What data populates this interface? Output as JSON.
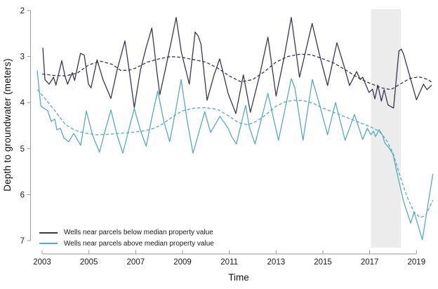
{
  "figure": {
    "kind": "time-series line chart",
    "background": "#ffffff",
    "axis_color": "#999999",
    "text_color": "#1a1a1a"
  },
  "chart_data": {
    "type": "line",
    "title": "",
    "xlabel": "Time",
    "ylabel": "Depth to groundwater (meters)",
    "x_ticks": [
      2003,
      2005,
      2007,
      2009,
      2011,
      2013,
      2015,
      2017,
      2019
    ],
    "y_ticks": [
      2,
      3,
      4,
      5,
      6,
      7
    ],
    "x_range": [
      2003,
      2019
    ],
    "y_range": [
      2,
      7
    ],
    "y_axis_inverted": true,
    "grid": false,
    "legend_position": "bottom-left-inside",
    "shaded_region": {
      "x_start": 2017.05,
      "x_end": 2018.33,
      "color": "#ececec"
    },
    "legend": [
      {
        "label": "Wells near parcels below median property value",
        "color": "#3d3453",
        "style": "solid"
      },
      {
        "label": "Wells near parcels above median property value",
        "color": "#58abbc",
        "style": "solid"
      }
    ],
    "series": [
      {
        "name": "Wells near parcels below median property value",
        "color": "#3d3453",
        "style": "solid",
        "width": 1.3,
        "points": [
          [
            2003.03,
            2.81
          ],
          [
            2003.12,
            3.5
          ],
          [
            2003.3,
            3.6
          ],
          [
            2003.49,
            3.45
          ],
          [
            2003.59,
            3.62
          ],
          [
            2003.84,
            3.09
          ],
          [
            2003.99,
            3.45
          ],
          [
            2004.09,
            3.6
          ],
          [
            2004.29,
            3.35
          ],
          [
            2004.39,
            3.52
          ],
          [
            2004.64,
            2.93
          ],
          [
            2004.8,
            2.97
          ],
          [
            2004.98,
            3.6
          ],
          [
            2005.09,
            3.68
          ],
          [
            2005.35,
            3.07
          ],
          [
            2005.6,
            3.5
          ],
          [
            2005.94,
            3.91
          ],
          [
            2006.2,
            3.3
          ],
          [
            2006.54,
            2.66
          ],
          [
            2006.75,
            3.4
          ],
          [
            2006.94,
            4.11
          ],
          [
            2007.2,
            3.3
          ],
          [
            2007.45,
            2.8
          ],
          [
            2007.69,
            2.38
          ],
          [
            2007.9,
            3.3
          ],
          [
            2008.03,
            3.83
          ],
          [
            2008.3,
            3.2
          ],
          [
            2008.55,
            2.6
          ],
          [
            2008.73,
            2.15
          ],
          [
            2008.95,
            2.9
          ],
          [
            2009.29,
            3.6
          ],
          [
            2009.54,
            2.47
          ],
          [
            2009.67,
            2.55
          ],
          [
            2009.79,
            2.73
          ],
          [
            2010.05,
            3.95
          ],
          [
            2010.35,
            3.4
          ],
          [
            2010.59,
            3.05
          ],
          [
            2010.95,
            3.8
          ],
          [
            2011.28,
            4.24
          ],
          [
            2011.6,
            3.4
          ],
          [
            2011.9,
            4.21
          ],
          [
            2012.3,
            3.4
          ],
          [
            2012.65,
            2.58
          ],
          [
            2013.0,
            3.86
          ],
          [
            2013.35,
            3.0
          ],
          [
            2013.65,
            2.15
          ],
          [
            2014.0,
            3.45
          ],
          [
            2014.3,
            2.8
          ],
          [
            2014.54,
            2.28
          ],
          [
            2014.85,
            2.95
          ],
          [
            2015.2,
            3.63
          ],
          [
            2015.6,
            2.7
          ],
          [
            2015.9,
            3.2
          ],
          [
            2016.14,
            3.63
          ],
          [
            2016.44,
            3.33
          ],
          [
            2016.6,
            3.5
          ],
          [
            2016.7,
            3.45
          ],
          [
            2016.97,
            3.78
          ],
          [
            2017.12,
            3.71
          ],
          [
            2017.22,
            3.92
          ],
          [
            2017.35,
            3.62
          ],
          [
            2017.5,
            3.97
          ],
          [
            2017.62,
            3.72
          ],
          [
            2017.78,
            4.05
          ],
          [
            2018.02,
            4.12
          ],
          [
            2018.25,
            2.88
          ],
          [
            2018.35,
            2.84
          ],
          [
            2018.45,
            2.95
          ],
          [
            2019.0,
            3.94
          ],
          [
            2019.3,
            3.6
          ],
          [
            2019.45,
            3.72
          ],
          [
            2019.65,
            3.62
          ]
        ]
      },
      {
        "name": "Below median - smoothed trend",
        "color": "#3d3453",
        "style": "dashed",
        "width": 1.3,
        "points": [
          [
            2003.0,
            3.38
          ],
          [
            2003.5,
            3.41
          ],
          [
            2004.0,
            3.42
          ],
          [
            2004.5,
            3.36
          ],
          [
            2005.0,
            3.18
          ],
          [
            2005.5,
            3.1
          ],
          [
            2006.0,
            3.17
          ],
          [
            2006.35,
            3.3
          ],
          [
            2006.7,
            3.3
          ],
          [
            2007.0,
            3.25
          ],
          [
            2007.5,
            3.12
          ],
          [
            2008.0,
            3.05
          ],
          [
            2008.5,
            3.0
          ],
          [
            2009.0,
            3.02
          ],
          [
            2009.5,
            3.07
          ],
          [
            2010.0,
            3.12
          ],
          [
            2010.5,
            3.25
          ],
          [
            2011.0,
            3.42
          ],
          [
            2011.5,
            3.55
          ],
          [
            2012.0,
            3.5
          ],
          [
            2012.5,
            3.33
          ],
          [
            2013.0,
            3.12
          ],
          [
            2013.5,
            3.0
          ],
          [
            2014.0,
            2.95
          ],
          [
            2014.5,
            2.96
          ],
          [
            2015.0,
            3.05
          ],
          [
            2015.5,
            3.15
          ],
          [
            2016.0,
            3.3
          ],
          [
            2016.5,
            3.46
          ],
          [
            2017.0,
            3.58
          ],
          [
            2017.5,
            3.68
          ],
          [
            2017.9,
            3.72
          ],
          [
            2018.3,
            3.6
          ],
          [
            2018.7,
            3.48
          ],
          [
            2019.1,
            3.44
          ],
          [
            2019.5,
            3.5
          ],
          [
            2019.7,
            3.58
          ]
        ]
      },
      {
        "name": "Wells near parcels above median property value",
        "color": "#58abbc",
        "style": "solid",
        "width": 1.3,
        "points": [
          [
            2002.79,
            3.3
          ],
          [
            2002.94,
            4.06
          ],
          [
            2003.03,
            4.11
          ],
          [
            2003.24,
            4.18
          ],
          [
            2003.39,
            4.41
          ],
          [
            2003.54,
            4.36
          ],
          [
            2003.63,
            4.59
          ],
          [
            2003.78,
            4.56
          ],
          [
            2003.93,
            4.77
          ],
          [
            2004.14,
            4.85
          ],
          [
            2004.35,
            4.67
          ],
          [
            2004.65,
            4.93
          ],
          [
            2004.89,
            4.18
          ],
          [
            2005.15,
            4.7
          ],
          [
            2005.45,
            5.08
          ],
          [
            2005.7,
            4.6
          ],
          [
            2005.94,
            4.16
          ],
          [
            2006.2,
            4.7
          ],
          [
            2006.45,
            5.1
          ],
          [
            2006.7,
            4.6
          ],
          [
            2006.94,
            4.13
          ],
          [
            2007.2,
            4.6
          ],
          [
            2007.45,
            4.95
          ],
          [
            2007.7,
            4.3
          ],
          [
            2007.94,
            3.75
          ],
          [
            2008.2,
            4.4
          ],
          [
            2008.45,
            4.85
          ],
          [
            2008.7,
            4.2
          ],
          [
            2008.94,
            3.5
          ],
          [
            2009.2,
            4.4
          ],
          [
            2009.45,
            5.1
          ],
          [
            2009.95,
            4.2
          ],
          [
            2010.2,
            4.65
          ],
          [
            2010.6,
            4.3
          ],
          [
            2010.95,
            4.56
          ],
          [
            2011.1,
            4.74
          ],
          [
            2011.3,
            4.9
          ],
          [
            2011.7,
            4.06
          ],
          [
            2011.85,
            4.52
          ],
          [
            2012.1,
            4.9
          ],
          [
            2012.4,
            4.3
          ],
          [
            2012.65,
            3.8
          ],
          [
            2013.1,
            4.82
          ],
          [
            2013.4,
            4.1
          ],
          [
            2013.65,
            3.48
          ],
          [
            2013.8,
            3.68
          ],
          [
            2014.15,
            4.82
          ],
          [
            2014.55,
            3.5
          ],
          [
            2014.85,
            4.03
          ],
          [
            2015.2,
            4.7
          ],
          [
            2015.54,
            4.0
          ],
          [
            2015.95,
            4.82
          ],
          [
            2016.35,
            4.26
          ],
          [
            2016.7,
            4.8
          ],
          [
            2016.9,
            4.56
          ],
          [
            2017.05,
            4.7
          ],
          [
            2017.16,
            4.62
          ],
          [
            2017.25,
            4.74
          ],
          [
            2017.4,
            4.59
          ],
          [
            2017.55,
            4.71
          ],
          [
            2017.64,
            4.87
          ],
          [
            2017.85,
            5.0
          ],
          [
            2018.0,
            5.13
          ],
          [
            2018.2,
            5.6
          ],
          [
            2018.45,
            6.15
          ],
          [
            2018.75,
            6.62
          ],
          [
            2018.9,
            6.38
          ],
          [
            2019.25,
            6.98
          ],
          [
            2019.7,
            5.55
          ]
        ]
      },
      {
        "name": "Above median - smoothed trend",
        "color": "#58abbc",
        "style": "dashed",
        "width": 1.3,
        "points": [
          [
            2002.8,
            3.72
          ],
          [
            2003.1,
            3.9
          ],
          [
            2003.5,
            4.15
          ],
          [
            2004.0,
            4.48
          ],
          [
            2004.4,
            4.6
          ],
          [
            2004.8,
            4.66
          ],
          [
            2005.3,
            4.7
          ],
          [
            2005.8,
            4.69
          ],
          [
            2006.3,
            4.67
          ],
          [
            2006.8,
            4.65
          ],
          [
            2007.3,
            4.62
          ],
          [
            2007.8,
            4.56
          ],
          [
            2008.2,
            4.45
          ],
          [
            2008.6,
            4.3
          ],
          [
            2009.0,
            4.18
          ],
          [
            2009.5,
            4.12
          ],
          [
            2010.0,
            4.11
          ],
          [
            2010.5,
            4.15
          ],
          [
            2011.0,
            4.3
          ],
          [
            2011.4,
            4.44
          ],
          [
            2011.8,
            4.48
          ],
          [
            2012.2,
            4.4
          ],
          [
            2012.6,
            4.25
          ],
          [
            2013.0,
            4.08
          ],
          [
            2013.4,
            3.98
          ],
          [
            2013.8,
            3.95
          ],
          [
            2014.2,
            3.96
          ],
          [
            2014.6,
            4.02
          ],
          [
            2015.0,
            4.12
          ],
          [
            2015.4,
            4.2
          ],
          [
            2015.8,
            4.28
          ],
          [
            2016.2,
            4.36
          ],
          [
            2016.6,
            4.44
          ],
          [
            2017.0,
            4.52
          ],
          [
            2017.4,
            4.62
          ],
          [
            2017.7,
            4.8
          ],
          [
            2018.0,
            5.1
          ],
          [
            2018.3,
            5.6
          ],
          [
            2018.6,
            6.05
          ],
          [
            2018.9,
            6.38
          ],
          [
            2019.15,
            6.5
          ],
          [
            2019.4,
            6.45
          ],
          [
            2019.7,
            6.12
          ]
        ]
      }
    ]
  }
}
